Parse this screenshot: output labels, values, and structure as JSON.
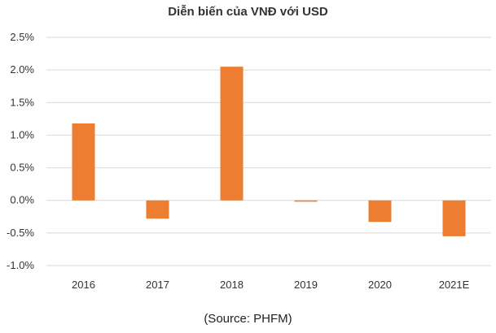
{
  "chart_data": {
    "type": "bar",
    "title": "Diễn biến của VNĐ với USD",
    "categories": [
      "2016",
      "2017",
      "2018",
      "2019",
      "2020",
      "2021E"
    ],
    "series": [
      {
        "values": [
          1.18,
          -0.28,
          2.05,
          -0.02,
          -0.33,
          -0.55
        ],
        "color": "#ed7d31"
      }
    ],
    "ylim": [
      -1.0,
      2.5
    ],
    "yticks": [
      2.5,
      2.0,
      1.5,
      1.0,
      0.5,
      0.0,
      -0.5,
      -1.0
    ],
    "ytick_labels": [
      "2.5%",
      "2.0%",
      "1.5%",
      "1.0%",
      "0.5%",
      "0.0%",
      "-0.5%",
      "-1.0%"
    ],
    "grid": true,
    "legend": "none",
    "source": "(Source: PHFM)"
  }
}
